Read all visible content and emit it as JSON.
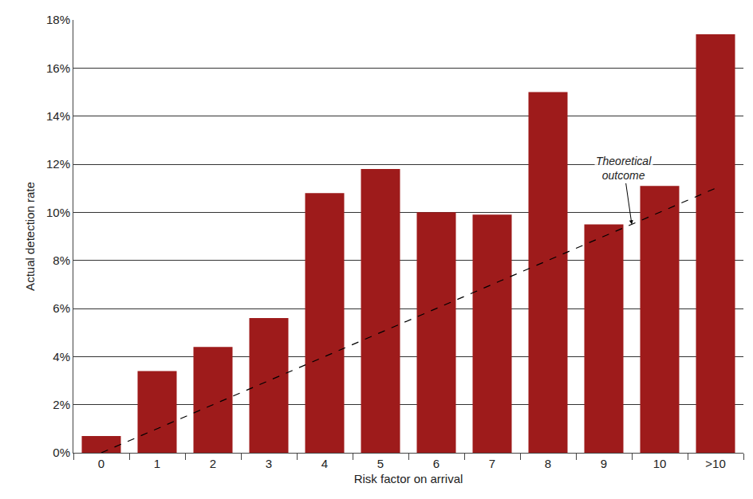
{
  "chart_data": {
    "type": "bar",
    "x_label": "Risk factor on arrival",
    "y_label": "Actual detection rate",
    "categories": [
      "0",
      "1",
      "2",
      "3",
      "4",
      "5",
      "6",
      "7",
      "8",
      "9",
      "10",
      ">10"
    ],
    "values": [
      0.7,
      3.4,
      4.4,
      5.6,
      10.8,
      11.8,
      10.0,
      9.9,
      15.0,
      9.5,
      11.1,
      17.4
    ],
    "color": "#9e1b1b",
    "series": [
      {
        "name": "Theoretical outcome",
        "type": "line",
        "line_style": "dashed",
        "color": "#000000",
        "values": [
          0,
          1,
          2,
          3,
          4,
          5,
          6,
          7,
          8,
          9,
          10,
          11
        ]
      }
    ],
    "ylim": [
      0,
      18
    ],
    "yticks": [
      {
        "value": 0,
        "label": "0%"
      },
      {
        "value": 2,
        "label": "2%"
      },
      {
        "value": 4,
        "label": "4%"
      },
      {
        "value": 6,
        "label": "6%"
      },
      {
        "value": 8,
        "label": "8%"
      },
      {
        "value": 10,
        "label": "10%"
      },
      {
        "value": 12,
        "label": "12%"
      },
      {
        "value": 14,
        "label": "14%"
      },
      {
        "value": 16,
        "label": "16%"
      },
      {
        "value": 18,
        "label": "18%"
      }
    ],
    "grid": true
  }
}
